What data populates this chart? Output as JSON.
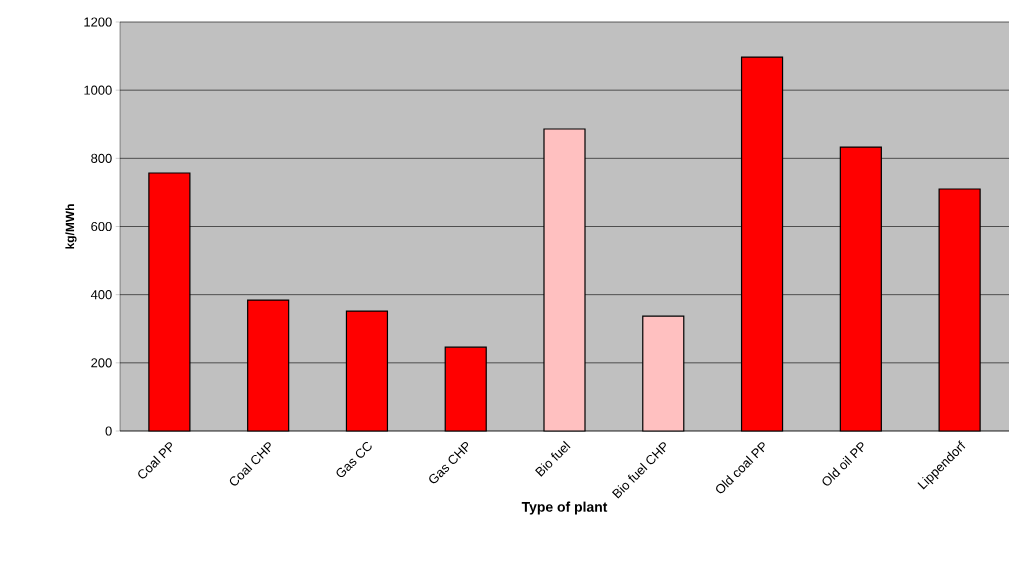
{
  "chart_data": {
    "type": "bar",
    "xlabel": "Type of plant",
    "ylabel": "kg/MWh",
    "categories": [
      "Coal PP",
      "Coal CHP",
      "Gas CC",
      "Gas CHP",
      "Bio fuel",
      "Bio fuel CHP",
      "Old coal PP",
      "Old oil PP",
      "Lippendorf"
    ],
    "values": [
      757,
      384,
      352,
      246,
      886,
      337,
      1097,
      833,
      710
    ],
    "colors": [
      "#ff0000",
      "#ff0000",
      "#ff0000",
      "#ff0000",
      "#ffc0c0",
      "#ffc0c0",
      "#ff0000",
      "#ff0000",
      "#ff0000"
    ],
    "ylim": [
      0,
      1200
    ],
    "yticks": [
      0,
      200,
      400,
      600,
      800,
      1000,
      1200
    ],
    "grid": "y"
  }
}
